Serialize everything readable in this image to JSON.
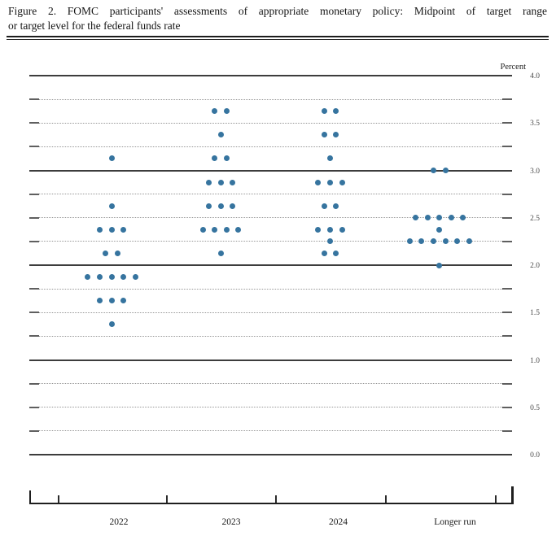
{
  "figure": {
    "title_line1": "Figure 2.  FOMC participants' assessments of appropriate monetary policy:  Midpoint of target range",
    "title_line2": "or target level for the federal funds rate"
  },
  "chart_data": {
    "type": "scatter",
    "subtype": "fomc-dot-plot",
    "title": "FOMC participants' assessments of appropriate monetary policy: Midpoint of target range or target level for the federal funds rate",
    "unit_label": "Percent",
    "categories": [
      "2022",
      "2023",
      "2024",
      "Longer run"
    ],
    "ylim": [
      0.0,
      4.0
    ],
    "grid": {
      "solid_lines": [
        0.0,
        1.0,
        2.0,
        3.0,
        4.0
      ],
      "dotted_step": 0.25,
      "labeled_ticks": [
        "4.0",
        "3.5",
        "3.0",
        "2.5",
        "2.0",
        "1.5",
        "1.0",
        "0.5",
        "0.0"
      ]
    },
    "legend_position": "none",
    "dot_color": "#36749f",
    "series": [
      {
        "name": "2022",
        "dots": [
          {
            "rate": 3.125,
            "count": 1
          },
          {
            "rate": 2.625,
            "count": 1
          },
          {
            "rate": 2.375,
            "count": 3
          },
          {
            "rate": 2.125,
            "count": 2
          },
          {
            "rate": 1.875,
            "count": 5
          },
          {
            "rate": 1.625,
            "count": 3
          },
          {
            "rate": 1.375,
            "count": 1
          }
        ]
      },
      {
        "name": "2023",
        "dots": [
          {
            "rate": 3.625,
            "count": 2
          },
          {
            "rate": 3.375,
            "count": 1
          },
          {
            "rate": 3.125,
            "count": 2
          },
          {
            "rate": 2.875,
            "count": 3
          },
          {
            "rate": 2.625,
            "count": 3
          },
          {
            "rate": 2.375,
            "count": 4
          },
          {
            "rate": 2.125,
            "count": 1
          }
        ]
      },
      {
        "name": "2024",
        "dots": [
          {
            "rate": 3.625,
            "count": 2
          },
          {
            "rate": 3.375,
            "count": 2
          },
          {
            "rate": 3.125,
            "count": 1
          },
          {
            "rate": 2.875,
            "count": 3
          },
          {
            "rate": 2.625,
            "count": 2
          },
          {
            "rate": 2.375,
            "count": 3
          },
          {
            "rate": 2.25,
            "count": 1
          },
          {
            "rate": 2.125,
            "count": 2
          }
        ]
      },
      {
        "name": "Longer run",
        "dots": [
          {
            "rate": 3.0,
            "count": 2
          },
          {
            "rate": 2.5,
            "count": 5
          },
          {
            "rate": 2.375,
            "count": 1
          },
          {
            "rate": 2.25,
            "count": 6
          },
          {
            "rate": 2.0,
            "count": 1
          }
        ]
      }
    ]
  }
}
